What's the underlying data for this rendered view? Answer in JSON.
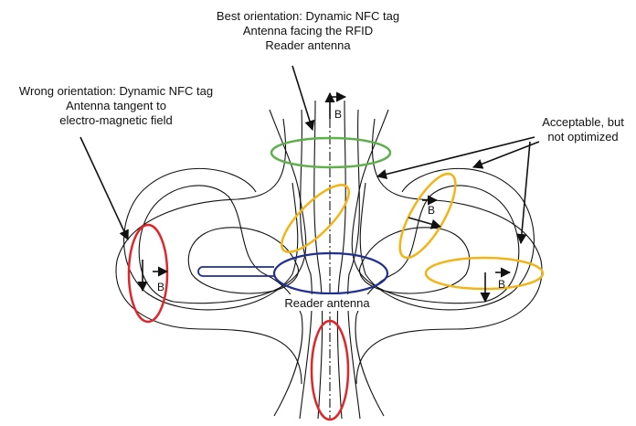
{
  "labels": {
    "best": [
      "Best orientation: Dynamic NFC tag",
      "Antenna facing the RFID",
      "Reader antenna"
    ],
    "wrong": [
      "Wrong orientation: Dynamic NFC tag",
      "Antenna tangent to",
      "electro-magnetic field"
    ],
    "acceptable": [
      "Acceptable, but",
      "not optimized"
    ],
    "reader": "Reader antenna",
    "b_symbol": "B"
  },
  "colors": {
    "field_line": "#111111",
    "reader_antenna": "#1f2f8f",
    "tag_best": "#5db04a",
    "tag_acceptable": "#f2b517",
    "tag_wrong": "#e0262b"
  }
}
